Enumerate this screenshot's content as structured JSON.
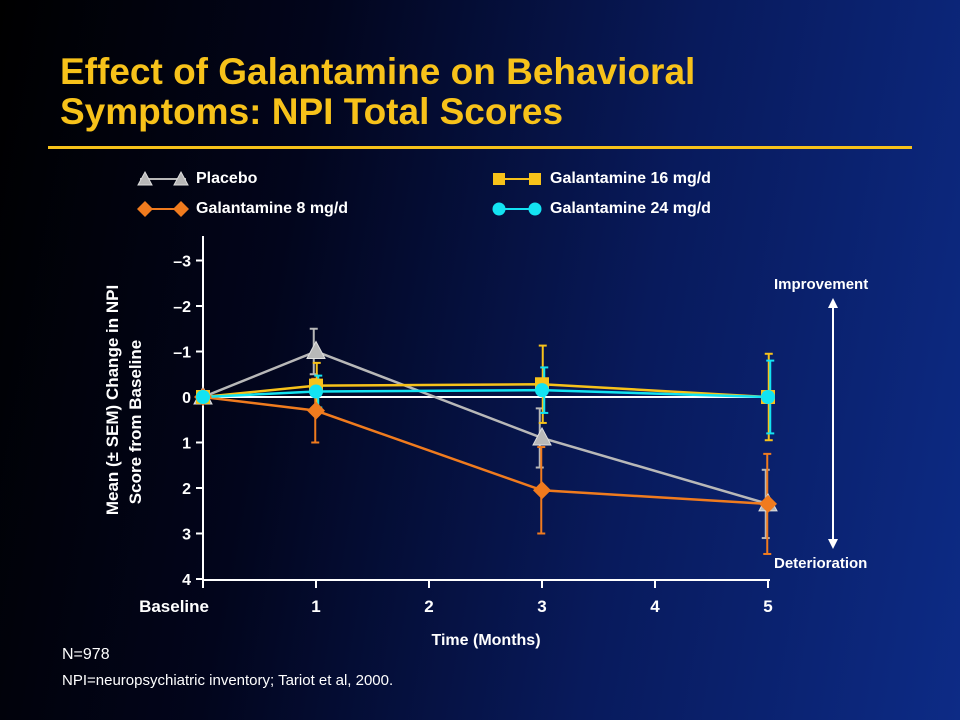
{
  "slide": {
    "title_line1": "Effect of Galantamine on Behavioral",
    "title_line2": "Symptoms: NPI Total Scores",
    "accent_color": "#f7c21a",
    "footnote_n": "N=978",
    "footnote_source": "NPI=neuropsychiatric inventory; Tariot et al, 2000.",
    "improvement_label": "Improvement",
    "deterioration_label": "Deterioration"
  },
  "chart_data": {
    "type": "line",
    "title": "",
    "xlabel": "Time (Months)",
    "ylabel_line1": "Mean (± SEM) Change in NPI",
    "ylabel_line2": "Score from Baseline",
    "x_ticks": [
      0,
      1,
      2,
      3,
      4,
      5
    ],
    "x_tick_labels": [
      "Baseline",
      "1",
      "2",
      "3",
      "4",
      "5"
    ],
    "y_ticks": [
      -3,
      -2,
      -1,
      0,
      1,
      2,
      3,
      4
    ],
    "y_tick_labels": [
      "–3",
      "–2",
      "–1",
      "0",
      "1",
      "2",
      "3",
      "4"
    ],
    "ylim": [
      -3.5,
      4
    ],
    "y_inverted": true,
    "grid": false,
    "legend_position": "top",
    "series": [
      {
        "name": "Placebo",
        "color": "#b8b8b8",
        "marker": "triangle",
        "x": [
          0,
          1,
          3,
          5
        ],
        "y": [
          0,
          -1.0,
          0.9,
          2.35
        ],
        "err": [
          0,
          0.5,
          0.65,
          0.75
        ]
      },
      {
        "name": "Galantamine 8 mg/d",
        "color": "#f07b1e",
        "marker": "diamond",
        "x": [
          0,
          1,
          3,
          5
        ],
        "y": [
          0,
          0.3,
          2.05,
          2.35
        ],
        "err": [
          0,
          0.7,
          0.95,
          1.1
        ]
      },
      {
        "name": "Galantamine 16 mg/d",
        "color": "#f7c21a",
        "marker": "square",
        "x": [
          0,
          1,
          3,
          5
        ],
        "y": [
          0,
          -0.25,
          -0.28,
          0
        ],
        "err": [
          0,
          0.5,
          0.85,
          0.95
        ]
      },
      {
        "name": "Galantamine 24 mg/d",
        "color": "#13e3f2",
        "marker": "circle",
        "x": [
          0,
          1,
          3,
          5
        ],
        "y": [
          0,
          -0.12,
          -0.15,
          0
        ],
        "err": [
          0,
          0.35,
          0.5,
          0.8
        ]
      }
    ]
  }
}
